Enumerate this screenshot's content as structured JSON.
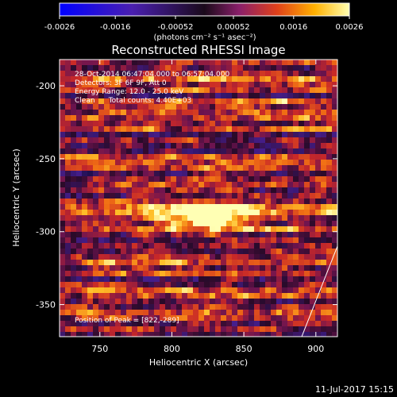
{
  "colorbar": {
    "ticks": [
      "-0.0026",
      "-0.0016",
      "-0.00052",
      "0.00052",
      "0.0016",
      "0.0026"
    ],
    "unit_label": "(photons cm⁻² s⁻¹ asec⁻²)",
    "range": [
      -0.0026,
      0.0026
    ]
  },
  "image": {
    "title": "Reconstructed RHESSI Image",
    "info_lines": [
      "28-Oct-2014 06:47:04.000 to 06:57:04.000",
      "Detectors: 3F 6F 9F, Att 0",
      "Energy Range: 12.0 - 25.0 keV",
      "Clean      Total counts: 4.40E+03"
    ],
    "peak_label": "Position of Peak = [822,-289]",
    "peak": [
      822,
      -289
    ]
  },
  "axes": {
    "xlabel": "Heliocentric X (arcsec)",
    "ylabel": "Heliocentric Y (arcsec)",
    "xticks": [
      "750",
      "800",
      "850",
      "900"
    ],
    "yticks": [
      "-200",
      "-250",
      "-300",
      "-350"
    ],
    "xlim": [
      722,
      915
    ],
    "ylim": [
      -372,
      -182
    ]
  },
  "footer": {
    "timestamp": "11-Jul-2017 15:15"
  }
}
